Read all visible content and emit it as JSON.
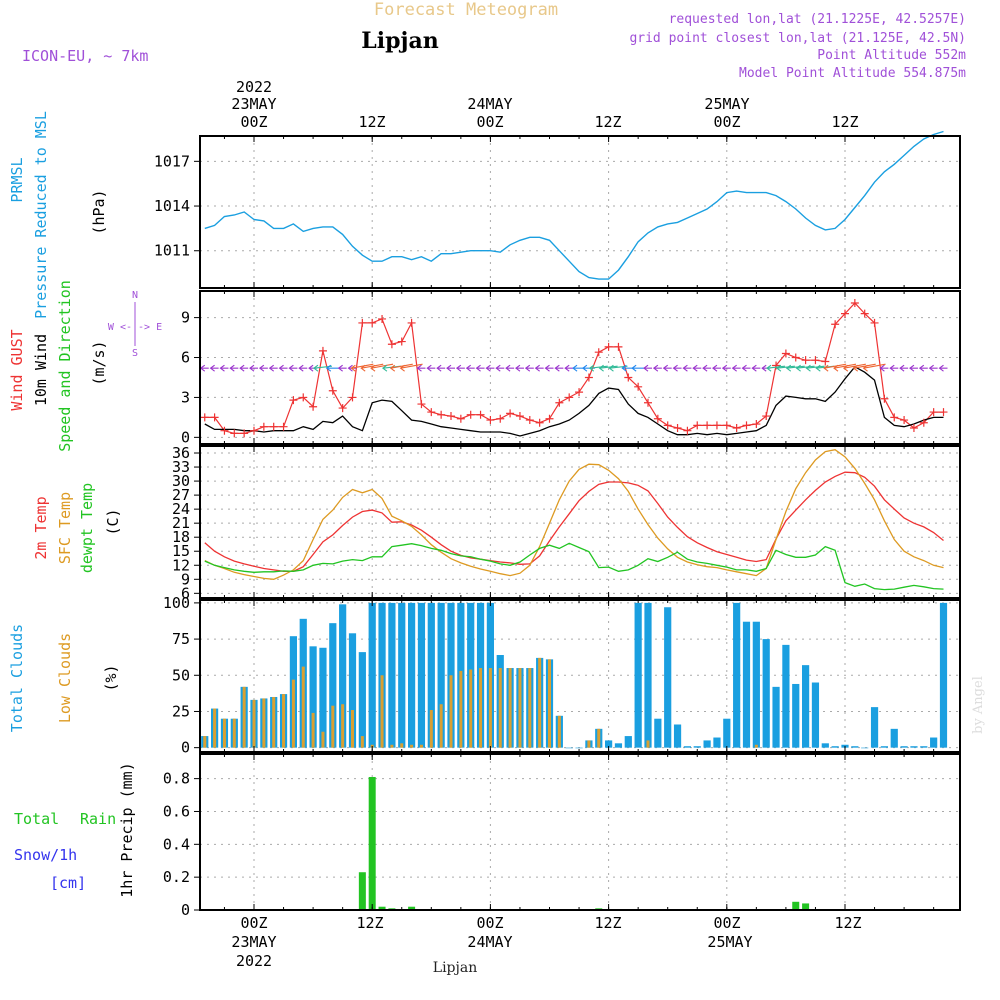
{
  "header": {
    "title": "Forecast Meteogram",
    "location": "Lipjan",
    "model": "ICON-EU, ~ 7km",
    "requested": "requested lon,lat (21.1225E, 42.5257E)",
    "gridpoint": "grid point closest lon,lat (21.125E, 42.5N)",
    "point_alt": "Point Altitude 552m",
    "model_alt": "Model Point Altitude 554.875m",
    "footer_location": "Lipjan",
    "credit": "by Angel"
  },
  "colors": {
    "pressure": "#1a9fe0",
    "gust": "#ee3333",
    "wind": "#000000",
    "t2m": "#ee3333",
    "sfc": "#dd9a22",
    "dewpt": "#22c422",
    "total_clouds": "#1a9fe0",
    "low_clouds": "#d9a032",
    "rain": "#22c422",
    "snow": "#3333ee",
    "arrows": "#9933cc",
    "header_gold": "#e8c88a",
    "meta": "#a050d8"
  },
  "top_time_labels": {
    "year": "2022",
    "d1": "23MAY",
    "d2": "24MAY",
    "d3": "25MAY",
    "z00": "00Z",
    "z12": "12Z"
  },
  "bottom_time_labels": {
    "year": "2022",
    "d1": "23MAY",
    "d2": "24MAY",
    "d3": "25MAY",
    "z00": "00Z",
    "z12": "12Z"
  },
  "panel_labels": {
    "pressure": {
      "a": "PRMSL",
      "b": "Pressure Reduced to MSL",
      "unit": "(hPa)"
    },
    "wind": {
      "a": "Wind GUST",
      "b": "10m Wind",
      "c": "Speed and Direction",
      "unit": "(m/s)",
      "dir_n": "N",
      "dir_s": "S",
      "dir_we": "W <-|-> E"
    },
    "temp": {
      "a": "2m Temp",
      "b": "SFC Temp",
      "c": "dewpt Temp",
      "unit": "(C)"
    },
    "clouds": {
      "a": "Total Clouds",
      "b": "Low Clouds",
      "unit": "(%)"
    },
    "precip": {
      "a": "Total",
      "b": "Rain",
      "c": "Snow/1h",
      "d": "[cm]",
      "unit": "1hr Precip (mm)"
    }
  },
  "chart_data": [
    {
      "type": "line",
      "title": "PRMSL Pressure Reduced to MSL",
      "ylabel": "(hPa)",
      "x_hours": [
        -5,
        -4,
        -3,
        -2,
        -1,
        0,
        1,
        2,
        3,
        4,
        5,
        6,
        7,
        8,
        9,
        10,
        11,
        12,
        13,
        14,
        15,
        16,
        17,
        18,
        19,
        20,
        21,
        22,
        23,
        24,
        25,
        26,
        27,
        28,
        29,
        30,
        31,
        32,
        33,
        34,
        35,
        36,
        37,
        38,
        39,
        40,
        41,
        42,
        43,
        44,
        45,
        46,
        47,
        48,
        49,
        50,
        51,
        52,
        53,
        54,
        55,
        56,
        57,
        58,
        59,
        60,
        61,
        62,
        63,
        64,
        65,
        66,
        67,
        68,
        69,
        70
      ],
      "series": [
        {
          "name": "PRMSL",
          "values": [
            1012.5,
            1012.7,
            1013.3,
            1013.4,
            1013.6,
            1013.1,
            1013.0,
            1012.5,
            1012.5,
            1012.8,
            1012.3,
            1012.5,
            1012.6,
            1012.6,
            1012.1,
            1011.3,
            1010.7,
            1010.3,
            1010.3,
            1010.6,
            1010.6,
            1010.4,
            1010.6,
            1010.3,
            1010.8,
            1010.8,
            1010.9,
            1011.0,
            1011.0,
            1011.0,
            1010.9,
            1011.4,
            1011.7,
            1011.9,
            1011.9,
            1011.7,
            1011.0,
            1010.3,
            1009.6,
            1009.2,
            1009.1,
            1009.1,
            1009.7,
            1010.6,
            1011.6,
            1012.2,
            1012.6,
            1012.8,
            1012.9,
            1013.2,
            1013.5,
            1013.8,
            1014.3,
            1014.9,
            1015.0,
            1014.9,
            1014.9,
            1014.9,
            1014.7,
            1014.3,
            1013.8,
            1013.2,
            1012.7,
            1012.4,
            1012.5,
            1013.1,
            1013.9,
            1014.7,
            1015.6,
            1016.3,
            1016.8,
            1017.4,
            1018.0,
            1018.5,
            1018.8,
            1019.0
          ]
        }
      ],
      "yticks": [
        1011,
        1014,
        1017
      ],
      "ylim": [
        1008.5,
        1018.7
      ]
    },
    {
      "type": "line",
      "title": "Wind GUST / 10m Wind Speed and Direction",
      "ylabel": "(m/s)",
      "x_hours": [
        -5,
        -4,
        -3,
        -2,
        -1,
        0,
        1,
        2,
        3,
        4,
        5,
        6,
        7,
        8,
        9,
        10,
        11,
        12,
        13,
        14,
        15,
        16,
        17,
        18,
        19,
        20,
        21,
        22,
        23,
        24,
        25,
        26,
        27,
        28,
        29,
        30,
        31,
        32,
        33,
        34,
        35,
        36,
        37,
        38,
        39,
        40,
        41,
        42,
        43,
        44,
        45,
        46,
        47,
        48,
        49,
        50,
        51,
        52,
        53,
        54,
        55,
        56,
        57,
        58,
        59,
        60,
        61,
        62,
        63,
        64,
        65,
        66,
        67,
        68,
        69,
        70
      ],
      "series": [
        {
          "name": "Wind GUST",
          "values": [
            1.5,
            1.5,
            0.5,
            0.3,
            0.3,
            0.5,
            0.8,
            0.8,
            0.8,
            2.8,
            3.0,
            2.3,
            6.5,
            3.5,
            2.2,
            3.0,
            8.6,
            8.6,
            8.9,
            7.0,
            7.2,
            8.6,
            2.5,
            1.9,
            1.7,
            1.6,
            1.4,
            1.7,
            1.7,
            1.3,
            1.4,
            1.8,
            1.6,
            1.3,
            1.1,
            1.4,
            2.6,
            3.0,
            3.4,
            4.5,
            6.4,
            6.8,
            6.8,
            4.5,
            3.8,
            2.6,
            1.4,
            0.9,
            0.7,
            0.5,
            0.9,
            0.9,
            0.9,
            0.9,
            0.7,
            0.9,
            1.0,
            1.6,
            5.4,
            6.3,
            6.0,
            5.8,
            5.8,
            5.7,
            8.5,
            9.3,
            10.1,
            9.3,
            8.6,
            2.9,
            1.5,
            1.3,
            0.7,
            1.1,
            1.9,
            1.9
          ]
        },
        {
          "name": "10m Wind",
          "values": [
            1.0,
            0.6,
            0.6,
            0.6,
            0.5,
            0.5,
            0.4,
            0.5,
            0.5,
            0.5,
            0.8,
            0.6,
            1.2,
            1.1,
            1.6,
            0.8,
            0.5,
            2.6,
            2.8,
            2.7,
            2.0,
            1.3,
            1.2,
            1.0,
            0.8,
            0.7,
            0.6,
            0.5,
            0.4,
            0.4,
            0.4,
            0.3,
            0.1,
            0.3,
            0.5,
            0.8,
            1.0,
            1.3,
            1.8,
            2.4,
            3.3,
            3.7,
            3.6,
            2.5,
            1.8,
            1.5,
            1.0,
            0.5,
            0.2,
            0.2,
            0.3,
            0.2,
            0.3,
            0.2,
            0.3,
            0.4,
            0.5,
            0.9,
            2.4,
            3.1,
            3.0,
            2.9,
            2.9,
            2.7,
            3.4,
            4.4,
            5.3,
            4.9,
            4.3,
            1.5,
            0.9,
            0.8,
            1.0,
            1.3,
            1.5,
            1.5
          ]
        }
      ],
      "yticks": [
        0,
        3,
        6,
        9
      ],
      "ylim": [
        -0.5,
        11
      ]
    },
    {
      "type": "line",
      "title": "2m Temp / SFC Temp / dewpt Temp",
      "ylabel": "(C)",
      "x_hours": [
        -5,
        -4,
        -3,
        -2,
        -1,
        0,
        1,
        2,
        3,
        4,
        5,
        6,
        7,
        8,
        9,
        10,
        11,
        12,
        13,
        14,
        15,
        16,
        17,
        18,
        19,
        20,
        21,
        22,
        23,
        24,
        25,
        26,
        27,
        28,
        29,
        30,
        31,
        32,
        33,
        34,
        35,
        36,
        37,
        38,
        39,
        40,
        41,
        42,
        43,
        44,
        45,
        46,
        47,
        48,
        49,
        50,
        51,
        52,
        53,
        54,
        55,
        56,
        57,
        58,
        59,
        60,
        61,
        62,
        63,
        64,
        65,
        66,
        67,
        68,
        69,
        70
      ],
      "series": [
        {
          "name": "2m Temp",
          "values": [
            16.8,
            15.0,
            13.8,
            12.9,
            12.3,
            11.8,
            11.3,
            11.0,
            10.7,
            10.7,
            11.7,
            14.3,
            17.0,
            18.5,
            20.5,
            22.3,
            23.5,
            23.8,
            23.2,
            21.2,
            21.3,
            20.6,
            19.5,
            18.0,
            16.4,
            15.0,
            14.1,
            13.6,
            13.3,
            13.0,
            12.7,
            12.5,
            12.2,
            12.3,
            14.0,
            17.2,
            20.2,
            23.0,
            25.8,
            27.8,
            29.3,
            29.8,
            29.8,
            29.6,
            29.1,
            27.9,
            25.2,
            22.3,
            20.1,
            18.1,
            16.8,
            15.8,
            14.9,
            14.3,
            13.7,
            13.1,
            12.8,
            13.2,
            17.6,
            21.5,
            23.8,
            26.0,
            28.0,
            29.8,
            31.0,
            31.9,
            31.8,
            30.8,
            28.9,
            26.0,
            24.0,
            22.1,
            21.0,
            20.2,
            19.0,
            17.3
          ]
        },
        {
          "name": "SFC Temp",
          "values": [
            13.0,
            12.0,
            11.3,
            10.5,
            10.0,
            9.6,
            9.2,
            9.0,
            9.9,
            11.0,
            13.0,
            17.5,
            21.8,
            23.8,
            26.5,
            28.2,
            27.5,
            28.2,
            26.3,
            22.5,
            21.5,
            20.3,
            18.5,
            16.4,
            14.8,
            13.4,
            12.5,
            11.8,
            11.2,
            10.7,
            10.2,
            9.8,
            10.3,
            12.0,
            16.0,
            21.0,
            26.0,
            30.0,
            32.5,
            33.6,
            33.5,
            32.3,
            30.5,
            27.8,
            24.0,
            20.7,
            17.8,
            15.5,
            13.7,
            12.7,
            12.1,
            11.7,
            11.5,
            11.0,
            10.6,
            10.2,
            9.8,
            11.3,
            17.5,
            23.5,
            28.4,
            31.8,
            34.5,
            36.3,
            36.7,
            35.2,
            32.7,
            29.5,
            26.0,
            21.5,
            17.5,
            15.0,
            13.8,
            13.0,
            12.0,
            11.5
          ]
        },
        {
          "name": "dewpt Temp",
          "values": [
            12.9,
            12.0,
            11.5,
            11.0,
            10.7,
            10.5,
            10.6,
            10.6,
            10.8,
            10.7,
            11.0,
            12.0,
            12.4,
            12.3,
            12.9,
            13.2,
            13.0,
            13.8,
            13.8,
            16.0,
            16.3,
            16.6,
            16.2,
            15.6,
            15.2,
            14.5,
            14.0,
            13.8,
            13.3,
            12.9,
            12.3,
            12.0,
            12.7,
            14.2,
            15.6,
            16.3,
            15.6,
            16.7,
            15.8,
            14.9,
            11.5,
            11.6,
            10.7,
            11.0,
            12.0,
            13.4,
            12.8,
            13.7,
            14.8,
            13.3,
            12.7,
            12.4,
            12.0,
            11.6,
            11.0,
            11.0,
            10.7,
            11.3,
            15.2,
            14.3,
            13.7,
            13.7,
            14.2,
            16.0,
            15.2,
            8.3,
            7.5,
            8.0,
            7.0,
            6.8,
            6.9,
            7.3,
            7.7,
            7.4,
            7.0,
            6.9
          ]
        }
      ],
      "yticks": [
        6,
        9,
        12,
        15,
        18,
        21,
        24,
        27,
        30,
        33,
        36
      ],
      "ylim": [
        5,
        37.5
      ]
    },
    {
      "type": "bar",
      "title": "Total Clouds / Low Clouds",
      "ylabel": "(%)",
      "x_hours": [
        -5,
        -4,
        -3,
        -2,
        -1,
        0,
        1,
        2,
        3,
        4,
        5,
        6,
        7,
        8,
        9,
        10,
        11,
        12,
        13,
        14,
        15,
        16,
        17,
        18,
        19,
        20,
        21,
        22,
        23,
        24,
        25,
        26,
        27,
        28,
        29,
        30,
        31,
        32,
        33,
        34,
        35,
        36,
        37,
        38,
        39,
        40,
        41,
        42,
        43,
        44,
        45,
        46,
        47,
        48,
        49,
        50,
        51,
        52,
        53,
        54,
        55,
        56,
        57,
        58,
        59,
        60,
        61,
        62,
        63,
        64,
        65,
        66,
        67,
        68,
        69,
        70
      ],
      "series": [
        {
          "name": "Total Clouds",
          "values": [
            8,
            27,
            20,
            20,
            42,
            33,
            34,
            35,
            37,
            77,
            89,
            70,
            69,
            86,
            99,
            79,
            66,
            100,
            100,
            100,
            100,
            100,
            100,
            100,
            100,
            100,
            100,
            100,
            100,
            100,
            64,
            55,
            55,
            55,
            62,
            61,
            22,
            0,
            0,
            5,
            13,
            5,
            3,
            8,
            100,
            100,
            20,
            97,
            16,
            1,
            1,
            5,
            7,
            20,
            100,
            87,
            87,
            75,
            42,
            71,
            44,
            57,
            45,
            3,
            1,
            2,
            1,
            0,
            28,
            1,
            13,
            1,
            1,
            1,
            7,
            100
          ]
        },
        {
          "name": "Low Clouds",
          "values": [
            8,
            27,
            20,
            20,
            42,
            33,
            34,
            35,
            37,
            47,
            56,
            24,
            11,
            29,
            30,
            26,
            8,
            2,
            50,
            2,
            3,
            2,
            2,
            26,
            30,
            50,
            53,
            54,
            55,
            55,
            55,
            55,
            55,
            55,
            62,
            61,
            22,
            0,
            0,
            5,
            13,
            0,
            0,
            0,
            0,
            5,
            0,
            0,
            0,
            0,
            0,
            0,
            0,
            0,
            0,
            0,
            2,
            0,
            0,
            0,
            0,
            0,
            0,
            0,
            0,
            0,
            0,
            0,
            0,
            0,
            0,
            0,
            0,
            0,
            0,
            0
          ]
        }
      ],
      "yticks": [
        0,
        25,
        50,
        75,
        100
      ],
      "ylim": [
        -3,
        102
      ]
    },
    {
      "type": "bar",
      "title": "Total Rain / Snow 1h Precip",
      "ylabel": "1hr Precip (mm)",
      "x_hours": [
        11,
        12,
        13,
        14,
        16,
        35,
        55,
        56
      ],
      "series": [
        {
          "name": "Total Rain",
          "values": [
            0.23,
            0.81,
            0.02,
            0.01,
            0.02,
            0.01,
            0.05,
            0.04
          ]
        }
      ],
      "yticks": [
        0,
        0.2,
        0.4,
        0.6,
        0.8
      ],
      "ylim": [
        0,
        0.95
      ]
    }
  ]
}
